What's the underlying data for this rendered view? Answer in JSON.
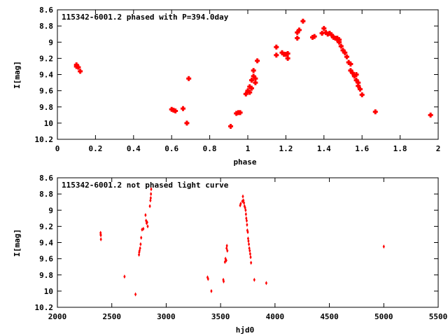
{
  "chart_data": [
    {
      "type": "scatter",
      "title": "115342-6001.2 phased with P=394.0day",
      "xlabel": "phase",
      "ylabel": "I[mag]",
      "xlim": [
        0,
        2
      ],
      "ylim": [
        10.2,
        8.6
      ],
      "y_inverted": true,
      "marker_color": "#ff0000",
      "marker": "filled-cross",
      "xticks": [
        0,
        0.2,
        0.4,
        0.6,
        0.8,
        1,
        1.2,
        1.4,
        1.6,
        1.8,
        2
      ],
      "xtick_labels": [
        "0",
        "0.2",
        "0.4",
        "0.6",
        "0.8",
        "1",
        "1.2",
        "1.4",
        "1.6",
        "1.8",
        "2"
      ],
      "yticks": [
        8.6,
        8.8,
        9,
        9.2,
        9.4,
        9.6,
        9.8,
        10,
        10.2
      ],
      "ytick_labels": [
        "8.6",
        "8.8",
        "9",
        "9.2",
        "9.4",
        "9.6",
        "9.8",
        "10",
        "10.2"
      ],
      "points": [
        [
          0.1,
          9.28
        ],
        [
          0.1,
          9.3
        ],
        [
          0.11,
          9.31
        ],
        [
          0.12,
          9.36
        ],
        [
          0.6,
          9.83
        ],
        [
          0.61,
          9.84
        ],
        [
          0.62,
          9.85
        ],
        [
          0.66,
          9.82
        ],
        [
          0.68,
          10.0
        ],
        [
          0.69,
          9.45
        ],
        [
          0.91,
          10.04
        ],
        [
          0.94,
          9.88
        ],
        [
          0.95,
          9.87
        ],
        [
          0.96,
          9.87
        ],
        [
          0.99,
          9.64
        ],
        [
          1.0,
          9.6
        ],
        [
          1.01,
          9.55
        ],
        [
          1.01,
          9.62
        ],
        [
          1.02,
          9.57
        ],
        [
          1.02,
          9.47
        ],
        [
          1.03,
          9.42
        ],
        [
          1.03,
          9.35
        ],
        [
          1.04,
          9.45
        ],
        [
          1.04,
          9.5
        ],
        [
          1.05,
          9.23
        ],
        [
          1.15,
          9.06
        ],
        [
          1.15,
          9.16
        ],
        [
          1.18,
          9.13
        ],
        [
          1.19,
          9.15
        ],
        [
          1.2,
          9.15
        ],
        [
          1.21,
          9.2
        ],
        [
          1.21,
          9.14
        ],
        [
          1.26,
          8.95
        ],
        [
          1.26,
          8.88
        ],
        [
          1.27,
          8.85
        ],
        [
          1.29,
          8.74
        ],
        [
          1.34,
          8.94
        ],
        [
          1.35,
          8.93
        ],
        [
          1.39,
          8.89
        ],
        [
          1.4,
          8.83
        ],
        [
          1.41,
          8.88
        ],
        [
          1.42,
          8.9
        ],
        [
          1.43,
          8.89
        ],
        [
          1.44,
          8.91
        ],
        [
          1.45,
          8.94
        ],
        [
          1.46,
          8.95
        ],
        [
          1.47,
          8.97
        ],
        [
          1.47,
          8.95
        ],
        [
          1.48,
          9.0
        ],
        [
          1.48,
          8.97
        ],
        [
          1.49,
          9.05
        ],
        [
          1.5,
          9.1
        ],
        [
          1.51,
          9.13
        ],
        [
          1.52,
          9.18
        ],
        [
          1.53,
          9.25
        ],
        [
          1.54,
          9.27
        ],
        [
          1.54,
          9.35
        ],
        [
          1.55,
          9.38
        ],
        [
          1.56,
          9.42
        ],
        [
          1.57,
          9.4
        ],
        [
          1.57,
          9.47
        ],
        [
          1.58,
          9.5
        ],
        [
          1.58,
          9.54
        ],
        [
          1.59,
          9.58
        ],
        [
          1.6,
          9.65
        ],
        [
          1.67,
          9.86
        ],
        [
          1.96,
          9.9
        ]
      ]
    },
    {
      "type": "scatter",
      "title": "115342-6001.2 not phased light curve",
      "xlabel": "hjd0",
      "ylabel": "I[mag]",
      "xlim": [
        2000,
        5500
      ],
      "ylim": [
        10.2,
        8.6
      ],
      "y_inverted": true,
      "marker_color": "#ff0000",
      "marker": "small-filled-diamond",
      "xticks": [
        2000,
        2500,
        3000,
        3500,
        4000,
        4500,
        5000,
        5500
      ],
      "xtick_labels": [
        "2000",
        "2500",
        "3000",
        "3500",
        "4000",
        "4500",
        "5000",
        "5500"
      ],
      "yticks": [
        8.6,
        8.8,
        9,
        9.2,
        9.4,
        9.6,
        9.8,
        10,
        10.2
      ],
      "ytick_labels": [
        "8.6",
        "8.8",
        "9",
        "9.2",
        "9.4",
        "9.6",
        "9.8",
        "10",
        "10.2"
      ],
      "points": [
        [
          2397,
          9.28
        ],
        [
          2398,
          9.3
        ],
        [
          2399,
          9.31
        ],
        [
          2400,
          9.36
        ],
        [
          2617,
          9.82
        ],
        [
          2718,
          10.04
        ],
        [
          2750,
          9.55
        ],
        [
          2752,
          9.52
        ],
        [
          2755,
          9.5
        ],
        [
          2760,
          9.47
        ],
        [
          2765,
          9.42
        ],
        [
          2770,
          9.34
        ],
        [
          2778,
          9.24
        ],
        [
          2790,
          9.23
        ],
        [
          2810,
          9.06
        ],
        [
          2815,
          9.13
        ],
        [
          2820,
          9.16
        ],
        [
          2825,
          9.15
        ],
        [
          2830,
          9.2
        ],
        [
          2850,
          8.95
        ],
        [
          2855,
          8.88
        ],
        [
          2858,
          8.85
        ],
        [
          2860,
          8.8
        ],
        [
          2862,
          8.74
        ],
        [
          3380,
          9.83
        ],
        [
          3385,
          9.85
        ],
        [
          3415,
          10.0
        ],
        [
          3525,
          9.86
        ],
        [
          3528,
          9.88
        ],
        [
          3540,
          9.64
        ],
        [
          3545,
          9.6
        ],
        [
          3552,
          9.62
        ],
        [
          3555,
          9.47
        ],
        [
          3558,
          9.44
        ],
        [
          3562,
          9.5
        ],
        [
          3680,
          8.94
        ],
        [
          3685,
          8.92
        ],
        [
          3700,
          8.89
        ],
        [
          3705,
          8.83
        ],
        [
          3710,
          8.88
        ],
        [
          3715,
          8.91
        ],
        [
          3720,
          8.95
        ],
        [
          3725,
          8.97
        ],
        [
          3730,
          9.0
        ],
        [
          3733,
          9.05
        ],
        [
          3736,
          9.1
        ],
        [
          3740,
          9.13
        ],
        [
          3743,
          9.18
        ],
        [
          3746,
          9.25
        ],
        [
          3750,
          9.27
        ],
        [
          3753,
          9.35
        ],
        [
          3756,
          9.38
        ],
        [
          3760,
          9.42
        ],
        [
          3764,
          9.47
        ],
        [
          3768,
          9.5
        ],
        [
          3772,
          9.54
        ],
        [
          3776,
          9.58
        ],
        [
          3780,
          9.65
        ],
        [
          3810,
          9.86
        ],
        [
          3920,
          9.9
        ],
        [
          5000,
          9.45
        ]
      ]
    }
  ]
}
